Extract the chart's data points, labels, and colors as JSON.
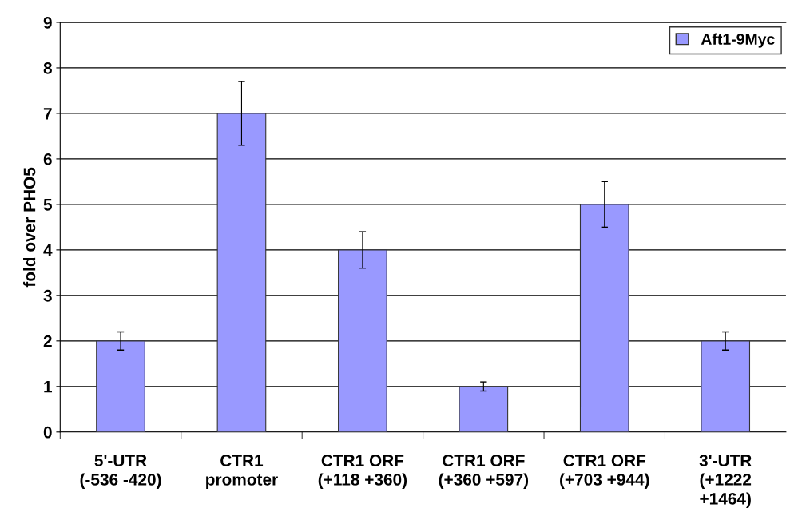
{
  "chart_data": {
    "type": "bar",
    "ylabel": "fold over PHO5",
    "categories": [
      "5'-UTR\n(-536 -420)",
      "CTR1\npromoter",
      "CTR1 ORF\n(+118 +360)",
      "CTR1 ORF\n(+360 +597)",
      "CTR1 ORF\n(+703 +944)",
      "3'-UTR\n(+1222\n+1464)"
    ],
    "series": [
      {
        "name": "Aft1-9Myc",
        "color": "#9999ff",
        "values": [
          2,
          7,
          4,
          1,
          5,
          2
        ],
        "errors": [
          0.2,
          0.7,
          0.4,
          0.1,
          0.5,
          0.2
        ]
      }
    ],
    "ylim": [
      0,
      9
    ],
    "yticks": [
      0,
      1,
      2,
      3,
      4,
      5,
      6,
      7,
      8,
      9
    ],
    "grid": "y",
    "legend": "top right"
  }
}
